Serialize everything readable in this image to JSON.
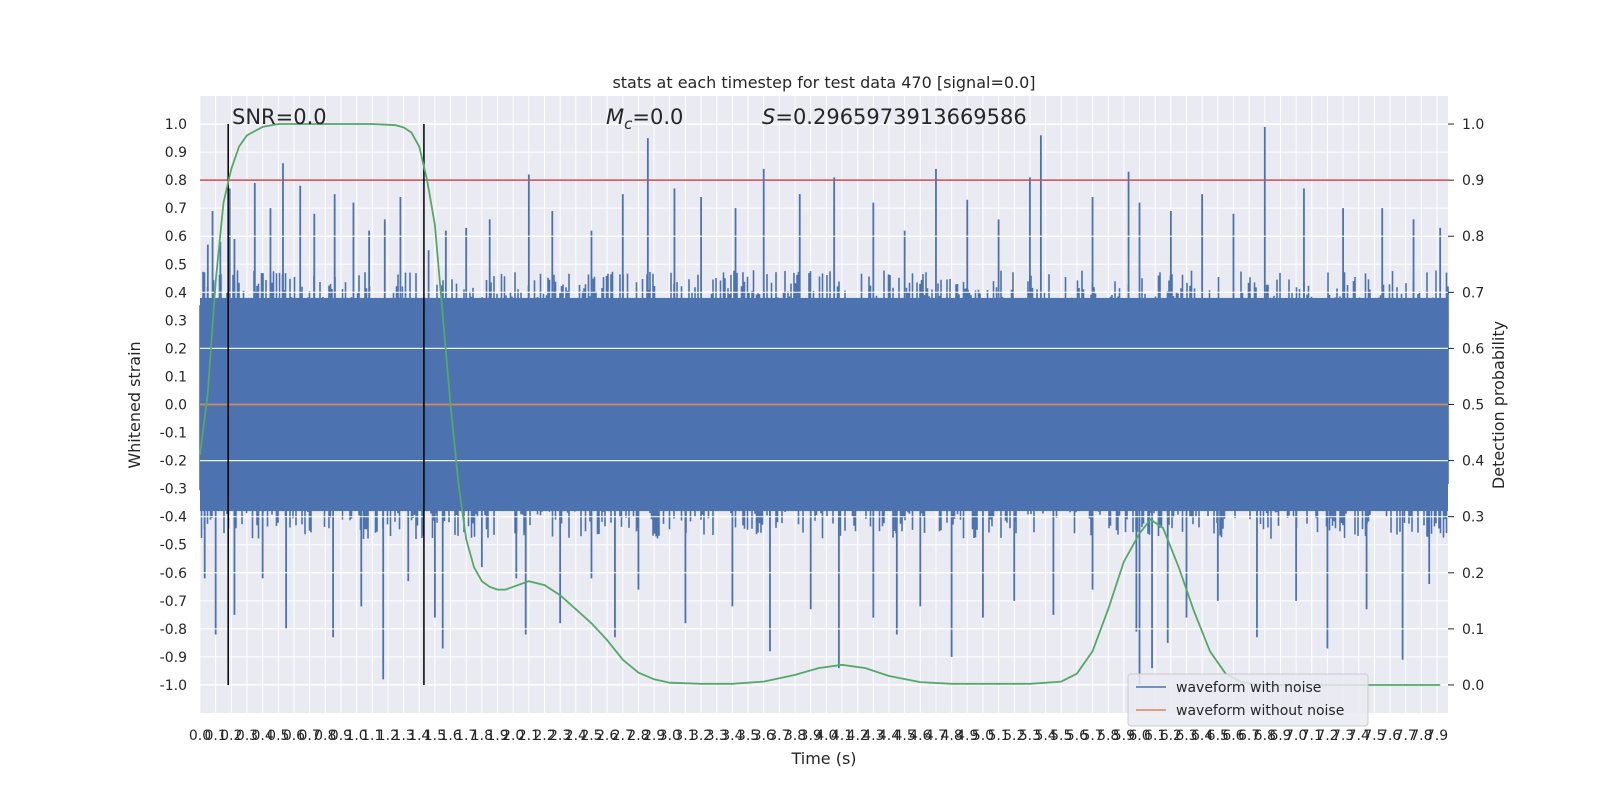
{
  "chart_data": {
    "type": "line",
    "title": "stats at each timestep for test data 470 [signal=0.0]",
    "xlabel": "Time (s)",
    "ylabel_left": "Whitened strain",
    "ylabel_right": "Detection probability",
    "xlim": [
      0.0,
      7.97
    ],
    "ylim_left": [
      -1.1,
      1.1
    ],
    "ylim_right": [
      -0.05,
      1.05
    ],
    "x_ticks": [
      "0.0",
      "0.1",
      "0.2",
      "0.3",
      "0.4",
      "0.5",
      "0.6",
      "0.7",
      "0.8",
      "0.9",
      "1.0",
      "1.1",
      "1.2",
      "1.3",
      "1.4",
      "1.5",
      "1.6",
      "1.7",
      "1.8",
      "1.9",
      "2.0",
      "2.1",
      "2.2",
      "2.3",
      "2.4",
      "2.5",
      "2.6",
      "2.7",
      "2.8",
      "2.9",
      "3.0",
      "3.1",
      "3.2",
      "3.3",
      "3.4",
      "3.5",
      "3.6",
      "3.7",
      "3.8",
      "3.9",
      "4.0",
      "4.1",
      "4.2",
      "4.3",
      "4.4",
      "4.5",
      "4.6",
      "4.7",
      "4.8",
      "4.9",
      "5.0",
      "5.1",
      "5.2",
      "5.3",
      "5.4",
      "5.5",
      "5.6",
      "5.7",
      "5.8",
      "5.9",
      "6.0",
      "6.1",
      "6.2",
      "6.3",
      "6.4",
      "6.5",
      "6.6",
      "6.7",
      "6.8",
      "6.9",
      "7.0",
      "7.1",
      "7.2",
      "7.3",
      "7.4",
      "7.5",
      "7.6",
      "7.7",
      "7.8",
      "7.9"
    ],
    "y_ticks_left": [
      "-1.0",
      "-0.9",
      "-0.8",
      "-0.7",
      "-0.6",
      "-0.5",
      "-0.4",
      "-0.3",
      "-0.2",
      "-0.1",
      "0.0",
      "0.1",
      "0.2",
      "0.3",
      "0.4",
      "0.5",
      "0.6",
      "0.7",
      "0.8",
      "0.9",
      "1.0"
    ],
    "y_ticks_right": [
      "0.0",
      "0.1",
      "0.2",
      "0.3",
      "0.4",
      "0.5",
      "0.6",
      "0.7",
      "0.8",
      "0.9",
      "1.0"
    ],
    "annotations": {
      "snr": "SNR=0.0",
      "mc_symbol": "M",
      "mc_subscript": "c",
      "mc_value": "=0.0",
      "s_symbol": "S",
      "s_value": "=0.2965973913669586"
    },
    "threshold": {
      "axis": "right",
      "value": 0.9,
      "color": "#c44e52"
    },
    "vlines": [
      0.18,
      1.43
    ],
    "series": [
      {
        "name": "waveform with noise",
        "axis": "left",
        "color": "#4c72b0",
        "envelope_typical": [
          -0.4,
          0.4
        ],
        "peaks": [
          [
            0.05,
            0.57
          ],
          [
            0.08,
            0.69
          ],
          [
            0.13,
            0.58
          ],
          [
            0.19,
            0.77
          ],
          [
            0.22,
            0.59
          ],
          [
            0.35,
            0.79
          ],
          [
            0.45,
            0.7
          ],
          [
            0.53,
            0.86
          ],
          [
            0.64,
            0.78
          ],
          [
            0.73,
            0.68
          ],
          [
            0.86,
            0.75
          ],
          [
            0.98,
            0.72
          ],
          [
            1.08,
            0.62
          ],
          [
            1.18,
            0.66
          ],
          [
            1.28,
            0.74
          ],
          [
            1.46,
            0.55
          ],
          [
            1.57,
            0.62
          ],
          [
            1.7,
            0.63
          ],
          [
            1.85,
            0.66
          ],
          [
            2.1,
            0.82
          ],
          [
            2.25,
            0.69
          ],
          [
            2.5,
            0.62
          ],
          [
            2.7,
            0.75
          ],
          [
            2.86,
            0.95
          ],
          [
            3.03,
            0.77
          ],
          [
            3.2,
            0.74
          ],
          [
            3.42,
            0.7
          ],
          [
            3.6,
            0.84
          ],
          [
            3.83,
            0.75
          ],
          [
            4.05,
            0.81
          ],
          [
            4.3,
            0.72
          ],
          [
            4.5,
            0.62
          ],
          [
            4.7,
            0.84
          ],
          [
            4.9,
            0.73
          ],
          [
            5.1,
            0.66
          ],
          [
            5.3,
            0.81
          ],
          [
            5.37,
            0.96
          ],
          [
            5.7,
            0.74
          ],
          [
            5.93,
            0.83
          ],
          [
            6.0,
            0.72
          ],
          [
            6.2,
            0.69
          ],
          [
            6.4,
            0.75
          ],
          [
            6.6,
            0.68
          ],
          [
            6.8,
            0.99
          ],
          [
            7.05,
            0.77
          ],
          [
            7.3,
            0.7
          ],
          [
            7.55,
            0.7
          ],
          [
            7.75,
            0.66
          ],
          [
            7.92,
            0.63
          ]
        ],
        "troughs": [
          [
            0.03,
            -0.62
          ],
          [
            0.1,
            -0.82
          ],
          [
            0.22,
            -0.75
          ],
          [
            0.4,
            -0.62
          ],
          [
            0.55,
            -0.8
          ],
          [
            0.85,
            -0.83
          ],
          [
            1.03,
            -0.72
          ],
          [
            1.17,
            -0.98
          ],
          [
            1.33,
            -0.63
          ],
          [
            1.5,
            -0.76
          ],
          [
            1.55,
            -0.87
          ],
          [
            1.8,
            -0.58
          ],
          [
            2.02,
            -0.62
          ],
          [
            2.08,
            -0.82
          ],
          [
            2.3,
            -0.78
          ],
          [
            2.5,
            -0.62
          ],
          [
            2.65,
            -0.83
          ],
          [
            2.8,
            -0.66
          ],
          [
            3.1,
            -0.78
          ],
          [
            3.4,
            -0.72
          ],
          [
            3.64,
            -0.88
          ],
          [
            3.9,
            -0.73
          ],
          [
            4.08,
            -0.94
          ],
          [
            4.3,
            -0.76
          ],
          [
            4.45,
            -0.82
          ],
          [
            4.6,
            -0.72
          ],
          [
            4.8,
            -0.9
          ],
          [
            5.0,
            -0.76
          ],
          [
            5.2,
            -0.7
          ],
          [
            5.45,
            -0.75
          ],
          [
            5.7,
            -0.66
          ],
          [
            5.98,
            -0.81
          ],
          [
            6.0,
            -1.0
          ],
          [
            6.08,
            -0.94
          ],
          [
            6.18,
            -0.85
          ],
          [
            6.3,
            -0.76
          ],
          [
            6.5,
            -0.7
          ],
          [
            6.75,
            -0.83
          ],
          [
            7.0,
            -0.7
          ],
          [
            7.2,
            -0.87
          ],
          [
            7.45,
            -0.73
          ],
          [
            7.68,
            -0.91
          ],
          [
            7.85,
            -0.64
          ]
        ]
      },
      {
        "name": "waveform without noise",
        "axis": "left",
        "color": "#dd8452",
        "points": [
          [
            0.0,
            0.0
          ],
          [
            7.97,
            0.0
          ]
        ]
      },
      {
        "name": "detection probability",
        "axis": "right",
        "color": "#55a868",
        "points": [
          [
            0.0,
            0.41
          ],
          [
            0.05,
            0.52
          ],
          [
            0.1,
            0.72
          ],
          [
            0.15,
            0.86
          ],
          [
            0.2,
            0.92
          ],
          [
            0.25,
            0.96
          ],
          [
            0.3,
            0.98
          ],
          [
            0.4,
            0.995
          ],
          [
            0.5,
            1.0
          ],
          [
            0.8,
            1.0
          ],
          [
            1.1,
            1.0
          ],
          [
            1.25,
            0.998
          ],
          [
            1.3,
            0.994
          ],
          [
            1.35,
            0.985
          ],
          [
            1.4,
            0.96
          ],
          [
            1.45,
            0.9
          ],
          [
            1.5,
            0.82
          ],
          [
            1.55,
            0.66
          ],
          [
            1.6,
            0.5
          ],
          [
            1.65,
            0.36
          ],
          [
            1.7,
            0.26
          ],
          [
            1.75,
            0.21
          ],
          [
            1.8,
            0.185
          ],
          [
            1.85,
            0.175
          ],
          [
            1.9,
            0.17
          ],
          [
            1.95,
            0.17
          ],
          [
            2.0,
            0.175
          ],
          [
            2.1,
            0.185
          ],
          [
            2.2,
            0.178
          ],
          [
            2.3,
            0.16
          ],
          [
            2.4,
            0.135
          ],
          [
            2.5,
            0.11
          ],
          [
            2.6,
            0.08
          ],
          [
            2.7,
            0.045
          ],
          [
            2.8,
            0.022
          ],
          [
            2.9,
            0.01
          ],
          [
            3.0,
            0.004
          ],
          [
            3.2,
            0.002
          ],
          [
            3.4,
            0.002
          ],
          [
            3.6,
            0.006
          ],
          [
            3.8,
            0.018
          ],
          [
            3.95,
            0.03
          ],
          [
            4.1,
            0.036
          ],
          [
            4.25,
            0.03
          ],
          [
            4.4,
            0.016
          ],
          [
            4.6,
            0.005
          ],
          [
            4.8,
            0.002
          ],
          [
            5.0,
            0.002
          ],
          [
            5.3,
            0.002
          ],
          [
            5.5,
            0.006
          ],
          [
            5.6,
            0.02
          ],
          [
            5.7,
            0.06
          ],
          [
            5.8,
            0.135
          ],
          [
            5.9,
            0.22
          ],
          [
            6.0,
            0.27
          ],
          [
            6.07,
            0.295
          ],
          [
            6.15,
            0.28
          ],
          [
            6.25,
            0.21
          ],
          [
            6.35,
            0.13
          ],
          [
            6.45,
            0.06
          ],
          [
            6.55,
            0.02
          ],
          [
            6.65,
            0.005
          ],
          [
            6.8,
            0.0
          ],
          [
            7.2,
            0.0
          ],
          [
            7.6,
            0.0
          ],
          [
            7.92,
            0.0
          ]
        ]
      }
    ],
    "legend": {
      "placement": "bottom-right"
    }
  }
}
